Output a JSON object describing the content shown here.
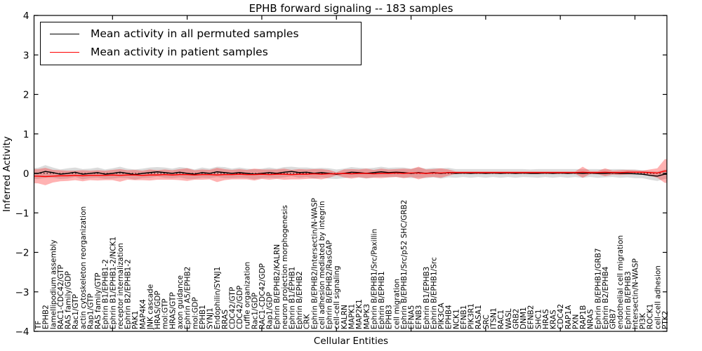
{
  "title": "EPHB forward signaling -- 183 samples",
  "legend": {
    "entries": [
      {
        "label": "Mean activity in all permuted samples",
        "color": "#000000"
      },
      {
        "label": "Mean activity in patient samples",
        "color": "#ff0000"
      }
    ]
  },
  "y_axis": {
    "label": "Inferred Activity",
    "tick_labels": [
      "4",
      "3",
      "2",
      "1",
      "0",
      "−1",
      "−2",
      "−3",
      "−4"
    ],
    "tick_values": [
      4,
      3,
      2,
      1,
      0,
      -1,
      -2,
      -3,
      -4
    ]
  },
  "x_axis": {
    "label": "Cellular Entities"
  },
  "chart_data": {
    "type": "line",
    "title": "EPHB forward signaling -- 183 samples",
    "xlabel": "Cellular Entities",
    "ylabel": "Inferred Activity",
    "ylim": [
      -4,
      4
    ],
    "grid": false,
    "zero_line": "dotted",
    "legend_position": "upper left",
    "x_tick_every": 10,
    "categories": [
      "TF",
      "EPHB2",
      "lamellipodium assembly",
      "RAC1-CDC42/GTP",
      "RAS family/GDP",
      "Rac1/GTP",
      "actin cytoskeleton reorganization",
      "Rap1/GTP",
      "RAS family/GTP",
      "Ephrin B1/EPHB1-2",
      "Ephrin B1/EPHB1-2/NCK1",
      "receptor internalization",
      "Ephrin B2/EPHB1-2",
      "PAK1",
      "MAP4K4",
      "JNK cascade",
      "HRAS/GDP",
      "mol:GTP",
      "HRAS/GTP",
      "axon guidance",
      "Ephrin A5/EPHB2",
      "mol:GDP",
      "EPHB1",
      "SYNJ1",
      "Endophilin/SYNJ1",
      "RRAS",
      "CDC42/GTP",
      "CDC42/GDP",
      "ruffle organization",
      "Rac1/GDP",
      "RAC1-CDC42/GDP",
      "Rap1/GDP",
      "Ephrin B/EPHB2/KALRN",
      "neuron projection morphogenesis",
      "Ephrin B1/EPHB1",
      "Ephrin B/EPHB2",
      "CRK",
      "Ephrin B/EPHB2/Intersectin/N-WASP",
      "cell adhesion mediated by integrin",
      "Ephrin B/EPHB2/RasGAP",
      "cell-cell signaling",
      "KALRN",
      "MAPK1",
      "MAP2K1",
      "MAPK3",
      "Ephrin B/EPHB1/Src/Paxillin",
      "Ephrin B/EPHB1",
      "EPHB3",
      "cell migration",
      "Ephrin B/EPHB1/Src/p52 SHC/GRB2",
      "EFNA5",
      "EFNB3",
      "Ephrin B1/EPHB3",
      "Ephrin B/EPHB1/Src",
      "PIK3CA",
      "EPHB4",
      "NCK1",
      "EFNB1",
      "PIK3R1",
      "RASA1",
      "SRC",
      "ITSN1",
      "RAC1",
      "WASL",
      "GRB2",
      "DNM1",
      "EFNB2",
      "SHC1",
      "HRAS",
      "KRAS",
      "CDC42",
      "RAP1A",
      "PXN",
      "RAP1B",
      "NRAS",
      "Ephrin B/EPHB1/GRB7",
      "Ephrin B2/EPHB4",
      "GRB7",
      "endothelial cell migration",
      "Ephrin B/EPHB3",
      "Intersectin/N-WASP",
      "PI3K",
      "ROCK1",
      "cell-cell adhesion",
      "PTK2"
    ],
    "series": [
      {
        "name": "Mean activity in all permuted samples",
        "color": "#000000",
        "band_color": "rgba(110,110,110,0.25)",
        "values": [
          0.0,
          0.05,
          0.02,
          -0.02,
          0.0,
          0.03,
          -0.02,
          0.0,
          0.02,
          -0.02,
          0.0,
          0.03,
          0.0,
          -0.03,
          0.0,
          0.02,
          0.04,
          0.02,
          0.0,
          0.03,
          0.0,
          -0.02,
          0.02,
          0.0,
          0.04,
          0.02,
          0.0,
          0.02,
          0.0,
          -0.02,
          0.0,
          0.02,
          0.0,
          0.03,
          0.05,
          0.02,
          0.03,
          0.0,
          0.02,
          0.0,
          -0.02,
          0.0,
          0.03,
          0.02,
          0.0,
          0.02,
          0.04,
          0.02,
          0.03,
          0.02,
          0.0,
          0.02,
          0.0,
          0.02,
          0.0,
          0.02,
          0.0,
          0.01,
          0.0,
          0.01,
          0.0,
          0.01,
          0.0,
          0.01,
          0.0,
          0.01,
          0.0,
          0.0,
          0.01,
          0.0,
          0.01,
          0.0,
          0.01,
          0.0,
          0.01,
          0.0,
          0.0,
          0.01,
          0.0,
          0.0,
          -0.01,
          -0.02,
          -0.05,
          -0.07,
          -0.02
        ],
        "band_halfwidth": [
          0.14,
          0.16,
          0.13,
          0.12,
          0.13,
          0.12,
          0.13,
          0.12,
          0.13,
          0.12,
          0.13,
          0.14,
          0.12,
          0.13,
          0.12,
          0.13,
          0.12,
          0.13,
          0.12,
          0.13,
          0.14,
          0.12,
          0.13,
          0.12,
          0.13,
          0.14,
          0.12,
          0.13,
          0.12,
          0.13,
          0.12,
          0.13,
          0.12,
          0.13,
          0.12,
          0.13,
          0.12,
          0.13,
          0.12,
          0.13,
          0.12,
          0.12,
          0.13,
          0.12,
          0.13,
          0.12,
          0.13,
          0.12,
          0.12,
          0.13,
          0.12,
          0.13,
          0.12,
          0.12,
          0.13,
          0.12,
          0.11,
          0.1,
          0.11,
          0.1,
          0.11,
          0.1,
          0.11,
          0.1,
          0.11,
          0.1,
          0.1,
          0.11,
          0.1,
          0.11,
          0.1,
          0.11,
          0.1,
          0.11,
          0.1,
          0.11,
          0.1,
          0.1,
          0.11,
          0.1,
          0.11,
          0.1,
          0.11,
          0.12,
          0.12
        ]
      },
      {
        "name": "Mean activity in patient samples",
        "color": "#ff0000",
        "band_color": "rgba(255,0,0,0.30)",
        "values": [
          -0.07,
          -0.08,
          -0.07,
          -0.06,
          -0.06,
          -0.05,
          -0.06,
          -0.05,
          -0.05,
          -0.05,
          -0.04,
          -0.05,
          -0.04,
          -0.04,
          -0.05,
          -0.04,
          -0.04,
          -0.03,
          -0.04,
          -0.03,
          -0.03,
          -0.04,
          -0.03,
          -0.03,
          -0.04,
          -0.03,
          -0.03,
          -0.02,
          -0.03,
          -0.03,
          -0.02,
          -0.03,
          -0.02,
          -0.02,
          -0.03,
          -0.02,
          -0.02,
          -0.01,
          -0.02,
          -0.01,
          -0.01,
          0.0,
          -0.01,
          0.0,
          0.0,
          -0.01,
          0.0,
          0.0,
          0.01,
          0.0,
          0.01,
          0.01,
          0.0,
          0.01,
          0.01,
          0.02,
          0.02,
          0.02,
          0.02,
          0.02,
          0.02,
          0.02,
          0.02,
          0.02,
          0.02,
          0.02,
          0.02,
          0.02,
          0.02,
          0.02,
          0.02,
          0.02,
          0.02,
          0.03,
          0.02,
          0.02,
          0.03,
          0.02,
          0.02,
          0.03,
          0.03,
          0.03,
          0.02,
          0.01,
          0.06
        ],
        "band_halfwidth": [
          0.18,
          0.22,
          0.16,
          0.14,
          0.13,
          0.12,
          0.14,
          0.12,
          0.13,
          0.12,
          0.13,
          0.16,
          0.12,
          0.13,
          0.12,
          0.14,
          0.12,
          0.13,
          0.12,
          0.14,
          0.16,
          0.12,
          0.13,
          0.12,
          0.18,
          0.14,
          0.12,
          0.13,
          0.12,
          0.15,
          0.12,
          0.13,
          0.12,
          0.14,
          0.12,
          0.13,
          0.12,
          0.12,
          0.13,
          0.1,
          0.04,
          0.1,
          0.12,
          0.1,
          0.12,
          0.1,
          0.12,
          0.1,
          0.1,
          0.12,
          0.1,
          0.16,
          0.1,
          0.1,
          0.12,
          0.08,
          0.03,
          0.03,
          0.03,
          0.03,
          0.03,
          0.03,
          0.03,
          0.03,
          0.03,
          0.03,
          0.03,
          0.03,
          0.03,
          0.03,
          0.03,
          0.03,
          0.03,
          0.14,
          0.04,
          0.04,
          0.1,
          0.05,
          0.06,
          0.06,
          0.05,
          0.04,
          0.08,
          0.12,
          0.3
        ]
      }
    ]
  }
}
